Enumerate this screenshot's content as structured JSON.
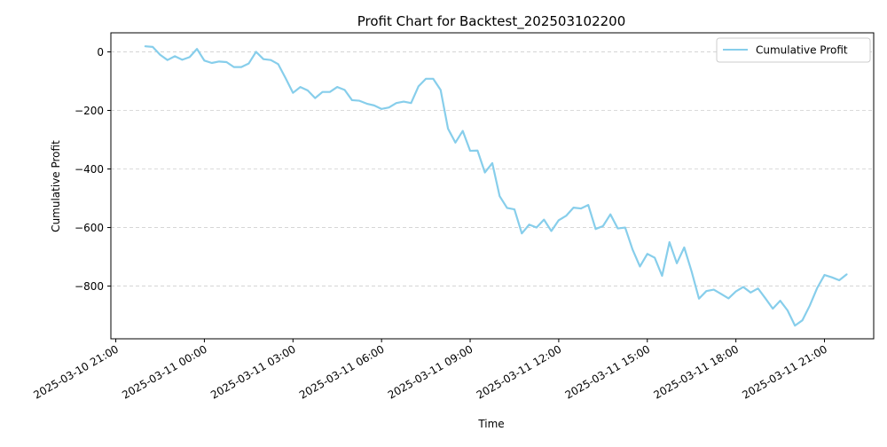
{
  "chart_data": {
    "type": "line",
    "title": "Profit Chart for Backtest_202503102200",
    "xlabel": "Time",
    "ylabel": "Cumulative Profit",
    "xlim": [
      "2025-03-10 20:50",
      "2025-03-11 22:40"
    ],
    "ylim": [
      -980,
      65
    ],
    "x_ticks": [
      "2025-03-10 21:00",
      "2025-03-11 00:00",
      "2025-03-11 03:00",
      "2025-03-11 06:00",
      "2025-03-11 09:00",
      "2025-03-11 12:00",
      "2025-03-11 15:00",
      "2025-03-11 18:00",
      "2025-03-11 21:00"
    ],
    "y_ticks": [
      0,
      -200,
      -400,
      -600,
      -800
    ],
    "grid": "y-dashed",
    "legend_position": "top-right",
    "series": [
      {
        "name": "Cumulative Profit",
        "color": "#87ceeb",
        "x": [
          "2025-03-10 22:00",
          "2025-03-10 22:15",
          "2025-03-10 22:30",
          "2025-03-10 22:45",
          "2025-03-10 23:00",
          "2025-03-10 23:15",
          "2025-03-10 23:30",
          "2025-03-10 23:45",
          "2025-03-11 00:00",
          "2025-03-11 00:15",
          "2025-03-11 00:30",
          "2025-03-11 00:45",
          "2025-03-11 01:00",
          "2025-03-11 01:15",
          "2025-03-11 01:30",
          "2025-03-11 01:45",
          "2025-03-11 02:00",
          "2025-03-11 02:15",
          "2025-03-11 02:30",
          "2025-03-11 02:45",
          "2025-03-11 03:00",
          "2025-03-11 03:15",
          "2025-03-11 03:30",
          "2025-03-11 03:45",
          "2025-03-11 04:00",
          "2025-03-11 04:15",
          "2025-03-11 04:30",
          "2025-03-11 04:45",
          "2025-03-11 05:00",
          "2025-03-11 05:15",
          "2025-03-11 05:30",
          "2025-03-11 05:45",
          "2025-03-11 06:00",
          "2025-03-11 06:15",
          "2025-03-11 06:30",
          "2025-03-11 06:45",
          "2025-03-11 07:00",
          "2025-03-11 07:15",
          "2025-03-11 07:30",
          "2025-03-11 07:45",
          "2025-03-11 08:00",
          "2025-03-11 08:15",
          "2025-03-11 08:30",
          "2025-03-11 08:45",
          "2025-03-11 09:00",
          "2025-03-11 09:15",
          "2025-03-11 09:30",
          "2025-03-11 09:45",
          "2025-03-11 10:00",
          "2025-03-11 10:15",
          "2025-03-11 10:30",
          "2025-03-11 10:45",
          "2025-03-11 11:00",
          "2025-03-11 11:15",
          "2025-03-11 11:30",
          "2025-03-11 11:45",
          "2025-03-11 12:00",
          "2025-03-11 12:15",
          "2025-03-11 12:30",
          "2025-03-11 12:45",
          "2025-03-11 13:00",
          "2025-03-11 13:15",
          "2025-03-11 13:30",
          "2025-03-11 13:45",
          "2025-03-11 14:00",
          "2025-03-11 14:15",
          "2025-03-11 14:30",
          "2025-03-11 14:45",
          "2025-03-11 15:00",
          "2025-03-11 15:15",
          "2025-03-11 15:30",
          "2025-03-11 15:45",
          "2025-03-11 16:00",
          "2025-03-11 16:15",
          "2025-03-11 16:30",
          "2025-03-11 16:45",
          "2025-03-11 17:00",
          "2025-03-11 17:15",
          "2025-03-11 17:30",
          "2025-03-11 17:45",
          "2025-03-11 18:00",
          "2025-03-11 18:15",
          "2025-03-11 18:30",
          "2025-03-11 18:45",
          "2025-03-11 19:00",
          "2025-03-11 19:15",
          "2025-03-11 19:30",
          "2025-03-11 19:45",
          "2025-03-11 20:00",
          "2025-03-11 20:15",
          "2025-03-11 20:30",
          "2025-03-11 20:45",
          "2025-03-11 21:00",
          "2025-03-11 21:15",
          "2025-03-11 21:30",
          "2025-03-11 21:45"
        ],
        "y": [
          19,
          17,
          -10,
          -28,
          -15,
          -27,
          -18,
          10,
          -30,
          -38,
          -33,
          -35,
          -52,
          -52,
          -40,
          0,
          -25,
          -28,
          -42,
          -90,
          -140,
          -120,
          -132,
          -158,
          -137,
          -137,
          -120,
          -130,
          -165,
          -167,
          -177,
          -183,
          -195,
          -190,
          -175,
          -170,
          -175,
          -118,
          -92,
          -92,
          -130,
          -262,
          -310,
          -270,
          -338,
          -337,
          -412,
          -380,
          -493,
          -533,
          -538,
          -620,
          -590,
          -600,
          -573,
          -612,
          -575,
          -560,
          -532,
          -535,
          -523,
          -605,
          -595,
          -555,
          -603,
          -600,
          -675,
          -733,
          -690,
          -703,
          -765,
          -650,
          -722,
          -668,
          -750,
          -843,
          -817,
          -812,
          -827,
          -842,
          -818,
          -803,
          -822,
          -808,
          -842,
          -877,
          -850,
          -883,
          -935,
          -917,
          -867,
          -807,
          -762,
          -770,
          -780,
          -760
        ]
      }
    ]
  }
}
